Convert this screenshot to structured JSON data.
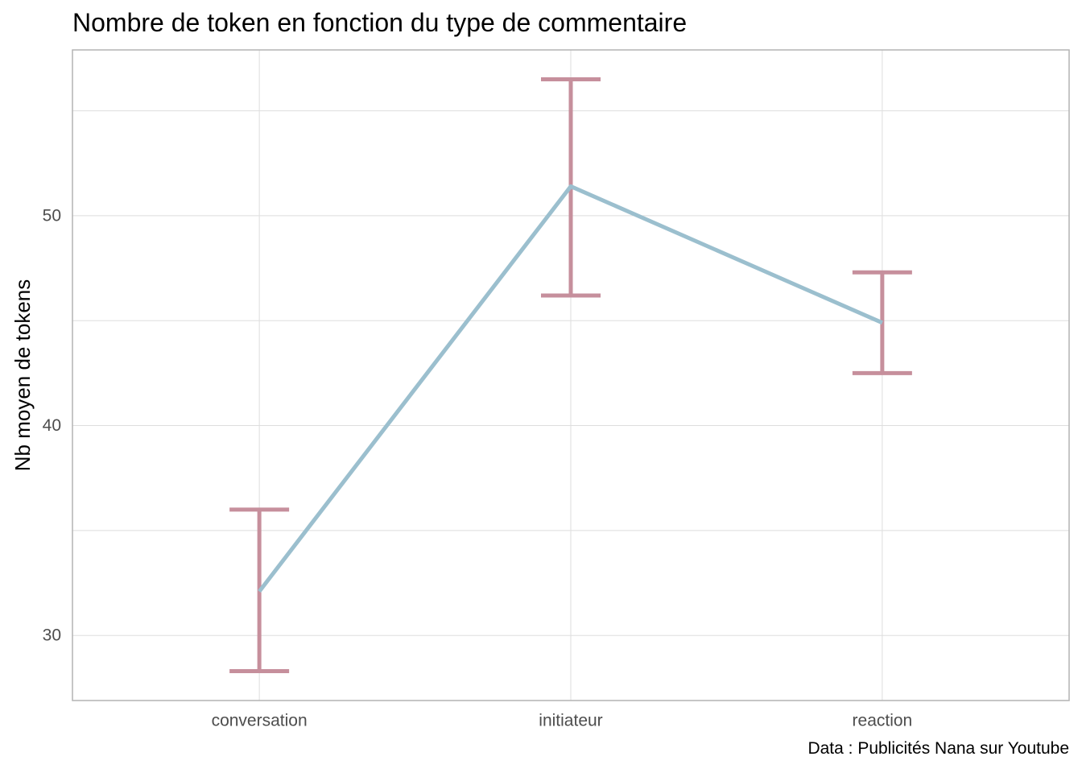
{
  "chart_data": {
    "type": "line",
    "title": "Nombre de token en fonction du type de commentaire",
    "caption": "Data : Publicités Nana sur Youtube",
    "xlabel": "",
    "ylabel": "Nb moyen de tokens",
    "categories": [
      "conversation",
      "initiateur",
      "reaction"
    ],
    "series": [
      {
        "values": [
          32.1,
          51.4,
          44.9
        ],
        "error_low": [
          28.3,
          46.2,
          42.5
        ],
        "error_high": [
          36.0,
          56.5,
          47.3
        ]
      }
    ],
    "yticks": [
      30,
      40,
      50
    ],
    "ylim": [
      26.9,
      57.9
    ],
    "grid": true,
    "legend": "none",
    "colors": {
      "line": "#9BBFCE",
      "errorbar": "#C68F9C",
      "grid": "#DEDEDE",
      "panel_border": "#B3B3B3",
      "tick_text": "#4D4D4D"
    }
  }
}
